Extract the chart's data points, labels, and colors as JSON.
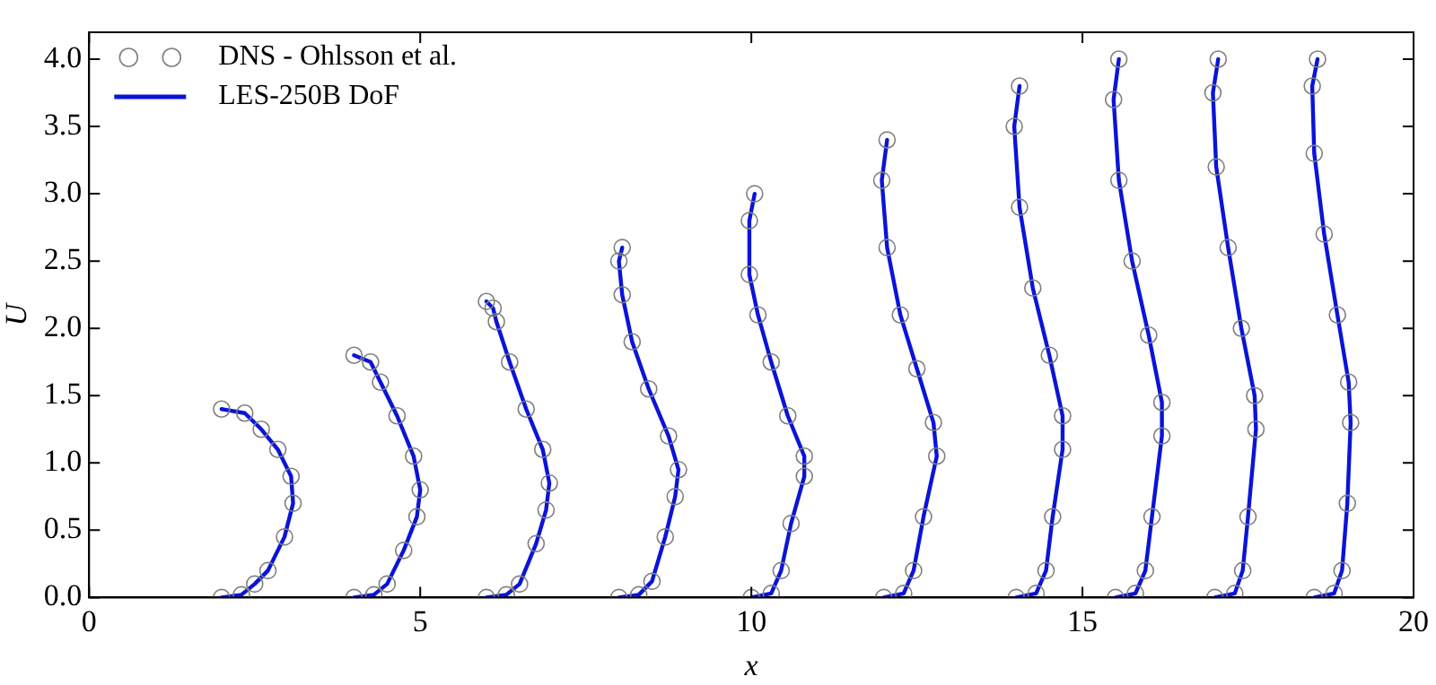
{
  "chart_data": {
    "type": "line",
    "xlabel": "x",
    "ylabel": "U",
    "xlim": [
      0,
      20
    ],
    "ylim": [
      0,
      4.2
    ],
    "xticks": [
      0,
      5,
      10,
      15,
      20
    ],
    "yticks": [
      {
        "value": 0,
        "label": "0.0"
      },
      {
        "value": 0.5,
        "label": "0.5"
      },
      {
        "value": 1,
        "label": "1.0"
      },
      {
        "value": 1.5,
        "label": "1.5"
      },
      {
        "value": 2,
        "label": "2.0"
      },
      {
        "value": 2.5,
        "label": "2.5"
      },
      {
        "value": 3,
        "label": "3.0"
      },
      {
        "value": 3.5,
        "label": "3.5"
      },
      {
        "value": 4,
        "label": "4.0"
      }
    ],
    "grid": false,
    "legend": "top left",
    "series": [
      {
        "name": "DNS - Ohlsson et al.",
        "type": "scatter",
        "marker": "circle",
        "color": "#7f7f7f",
        "x": [
          2.0,
          2.3,
          2.5,
          2.7,
          2.95,
          3.08,
          3.05,
          2.85,
          2.6,
          2.35,
          2.0,
          null,
          4.0,
          4.3,
          4.5,
          4.75,
          4.95,
          5.0,
          4.9,
          4.65,
          4.4,
          4.25,
          4.0,
          null,
          6.0,
          6.3,
          6.5,
          6.75,
          6.9,
          6.95,
          6.85,
          6.6,
          6.35,
          6.15,
          6.1,
          6.0,
          null,
          8.0,
          8.3,
          8.5,
          8.7,
          8.85,
          8.9,
          8.75,
          8.45,
          8.2,
          8.05,
          8.0,
          8.05,
          null,
          10.0,
          10.3,
          10.45,
          10.6,
          10.8,
          10.8,
          10.55,
          10.3,
          10.1,
          9.97,
          9.97,
          10.05,
          null,
          12.0,
          12.3,
          12.45,
          12.6,
          12.8,
          12.75,
          12.5,
          12.25,
          12.05,
          11.97,
          12.05,
          null,
          14.0,
          14.3,
          14.45,
          14.55,
          14.7,
          14.7,
          14.5,
          14.25,
          14.05,
          13.97,
          14.05,
          null,
          15.5,
          15.8,
          15.95,
          16.05,
          16.2,
          16.2,
          16.0,
          15.75,
          15.55,
          15.47,
          15.55,
          null,
          17.0,
          17.3,
          17.42,
          17.5,
          17.62,
          17.6,
          17.4,
          17.2,
          17.02,
          16.97,
          17.05,
          null,
          18.5,
          18.8,
          18.92,
          19.0,
          19.05,
          19.02,
          18.85,
          18.65,
          18.5,
          18.47,
          18.55
        ],
        "values": [
          0,
          0.02,
          0.1,
          0.2,
          0.45,
          0.7,
          0.9,
          1.1,
          1.25,
          1.37,
          1.4,
          null,
          0,
          0.02,
          0.1,
          0.35,
          0.6,
          0.8,
          1.05,
          1.35,
          1.6,
          1.75,
          1.8,
          null,
          0,
          0.02,
          0.1,
          0.4,
          0.65,
          0.85,
          1.1,
          1.4,
          1.75,
          2.05,
          2.15,
          2.2,
          null,
          0,
          0.02,
          0.12,
          0.45,
          0.75,
          0.95,
          1.2,
          1.55,
          1.9,
          2.25,
          2.5,
          2.6,
          null,
          0,
          0.03,
          0.2,
          0.55,
          0.9,
          1.05,
          1.35,
          1.75,
          2.1,
          2.4,
          2.8,
          3.0,
          null,
          0,
          0.03,
          0.2,
          0.6,
          1.05,
          1.3,
          1.7,
          2.1,
          2.6,
          3.1,
          3.4,
          null,
          0,
          0.03,
          0.2,
          0.6,
          1.1,
          1.35,
          1.8,
          2.3,
          2.9,
          3.5,
          3.8,
          null,
          0,
          0.03,
          0.2,
          0.6,
          1.2,
          1.45,
          1.95,
          2.5,
          3.1,
          3.7,
          4.0,
          null,
          0,
          0.03,
          0.2,
          0.6,
          1.25,
          1.5,
          2.0,
          2.6,
          3.2,
          3.75,
          4.0,
          null,
          0,
          0.03,
          0.2,
          0.7,
          1.3,
          1.6,
          2.1,
          2.7,
          3.3,
          3.8,
          4.0
        ]
      },
      {
        "name": "LES-250B DoF",
        "marker": "none",
        "line_style": "solid",
        "color": "#0a14d8",
        "x": [
          2.0,
          2.3,
          2.5,
          2.7,
          2.95,
          3.08,
          3.05,
          2.85,
          2.6,
          2.35,
          2.0,
          null,
          4.0,
          4.3,
          4.5,
          4.75,
          4.95,
          5.0,
          4.9,
          4.65,
          4.4,
          4.25,
          4.0,
          null,
          6.0,
          6.3,
          6.5,
          6.75,
          6.9,
          6.95,
          6.85,
          6.6,
          6.35,
          6.15,
          6.1,
          6.0,
          null,
          8.0,
          8.3,
          8.5,
          8.7,
          8.85,
          8.9,
          8.75,
          8.45,
          8.2,
          8.05,
          8.0,
          8.05,
          null,
          10.0,
          10.3,
          10.45,
          10.6,
          10.8,
          10.8,
          10.55,
          10.3,
          10.1,
          9.97,
          9.97,
          10.05,
          null,
          12.0,
          12.3,
          12.45,
          12.6,
          12.8,
          12.75,
          12.5,
          12.25,
          12.05,
          11.97,
          12.05,
          null,
          14.0,
          14.3,
          14.45,
          14.55,
          14.7,
          14.7,
          14.5,
          14.25,
          14.05,
          13.97,
          14.05,
          null,
          15.5,
          15.8,
          15.95,
          16.05,
          16.2,
          16.2,
          16.0,
          15.75,
          15.55,
          15.47,
          15.55,
          null,
          17.0,
          17.3,
          17.42,
          17.5,
          17.62,
          17.6,
          17.4,
          17.2,
          17.02,
          16.97,
          17.05,
          null,
          18.5,
          18.8,
          18.92,
          19.0,
          19.05,
          19.02,
          18.85,
          18.65,
          18.5,
          18.47,
          18.55
        ],
        "values": [
          0,
          0.02,
          0.1,
          0.2,
          0.45,
          0.7,
          0.9,
          1.1,
          1.25,
          1.37,
          1.4,
          null,
          0,
          0.02,
          0.1,
          0.35,
          0.6,
          0.8,
          1.05,
          1.35,
          1.6,
          1.75,
          1.8,
          null,
          0,
          0.02,
          0.1,
          0.4,
          0.65,
          0.85,
          1.1,
          1.4,
          1.75,
          2.05,
          2.15,
          2.2,
          null,
          0,
          0.02,
          0.12,
          0.45,
          0.75,
          0.95,
          1.2,
          1.55,
          1.9,
          2.25,
          2.5,
          2.6,
          null,
          0,
          0.03,
          0.2,
          0.55,
          0.9,
          1.05,
          1.35,
          1.75,
          2.1,
          2.4,
          2.8,
          3.0,
          null,
          0,
          0.03,
          0.2,
          0.6,
          1.05,
          1.3,
          1.7,
          2.1,
          2.6,
          3.1,
          3.4,
          null,
          0,
          0.03,
          0.2,
          0.6,
          1.1,
          1.35,
          1.8,
          2.3,
          2.9,
          3.5,
          3.8,
          null,
          0,
          0.03,
          0.2,
          0.6,
          1.2,
          1.45,
          1.95,
          2.5,
          3.1,
          3.7,
          4.0,
          null,
          0,
          0.03,
          0.2,
          0.6,
          1.25,
          1.5,
          2.0,
          2.6,
          3.2,
          3.75,
          4.0,
          null,
          0,
          0.03,
          0.2,
          0.7,
          1.3,
          1.6,
          2.1,
          2.7,
          3.3,
          3.8,
          4.0
        ]
      }
    ]
  }
}
